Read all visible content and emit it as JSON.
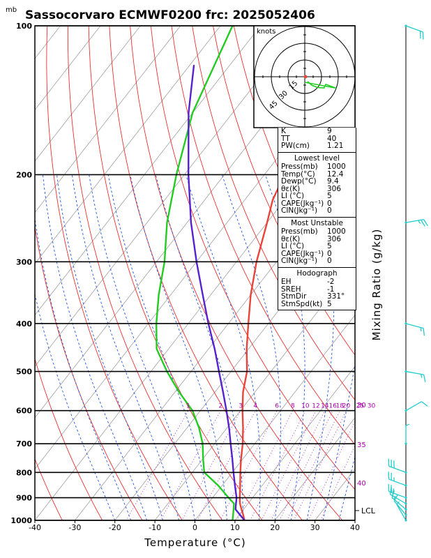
{
  "title": "Sassocorvaro ECMWF0200  frc: 2025052406",
  "pressure_unit": "mb",
  "xlabel": "Temperature (°C)",
  "ylabel": "Mixing Ratio (g/kg)",
  "lcl_label": "LCL",
  "hodograph": {
    "unit_label": "knots",
    "ring_labels": [
      "15",
      "30",
      "45"
    ]
  },
  "info": {
    "indices": [
      {
        "k": "K",
        "v": "9"
      },
      {
        "k": "TT",
        "v": "40"
      },
      {
        "k": "PW(cm)",
        "v": "1.21"
      }
    ],
    "lowest": {
      "header": "Lowest level",
      "rows": [
        {
          "k": "Press(mb)",
          "v": "1000"
        },
        {
          "k": "Temp(°C)",
          "v": "12.4"
        },
        {
          "k": "Dewp(°C)",
          "v": "9.4"
        },
        {
          "k": "θε(K)",
          "v": "306"
        },
        {
          "k": "LI (°C)",
          "v": "5"
        },
        {
          "k": "CAPE(Jkg⁻¹)",
          "v": "0"
        },
        {
          "k": "CIN(Jkg⁻¹)",
          "v": "0"
        }
      ]
    },
    "unstable": {
      "header": "Most Unstable",
      "rows": [
        {
          "k": "Press(mb)",
          "v": "1000"
        },
        {
          "k": "θε(K)",
          "v": "306"
        },
        {
          "k": "LI (°C)",
          "v": "5"
        },
        {
          "k": "CAPE(Jkg⁻¹)",
          "v": "0"
        },
        {
          "k": "CIN(Jkg⁻¹)",
          "v": "0"
        }
      ]
    },
    "hodo": {
      "header": "Hodograph",
      "rows": [
        {
          "k": "EH",
          "v": "-2"
        },
        {
          "k": "SREH",
          "v": "-1"
        },
        {
          "k": "StmDir",
          "v": "331°"
        },
        {
          "k": "StmSpd(kt)",
          "v": "5"
        }
      ]
    }
  },
  "chart_data": {
    "type": "line",
    "title": "Sassocorvaro ECMWF0200  frc: 2025052406",
    "xlabel": "Temperature (°C)",
    "ylabel": "Mixing Ratio (g/kg)",
    "xlim": [
      -40,
      40
    ],
    "ylim_pressure": [
      1000,
      100
    ],
    "x_ticks": [
      -40,
      -30,
      -20,
      -10,
      0,
      10,
      20,
      30,
      40
    ],
    "pressure_ticks": [
      1000,
      900,
      800,
      700,
      600,
      500,
      400,
      300,
      200,
      100
    ],
    "mixing_ratio_labels": [
      "1",
      "2",
      "3",
      "4",
      "6",
      "8",
      "10",
      "12",
      "14",
      "16",
      "18",
      "20",
      "25",
      "30"
    ],
    "theta_e_labels": [
      "30",
      "35",
      "40"
    ],
    "colors": {
      "temperature": "#e8443a",
      "dewpoint": "#22cc22",
      "parcel": "#5522cc",
      "dry_adiabat": "#e83030",
      "moist_adiabat": "#2255dd",
      "isotherm": "#aaaaaa",
      "mixing_ratio": "#aa22cc",
      "wind": "#22cccc",
      "label": "#aa00aa"
    },
    "series": [
      {
        "name": "Temperature",
        "points": [
          [
            1000,
            12.4
          ],
          [
            975,
            11
          ],
          [
            950,
            9.5
          ],
          [
            925,
            8
          ],
          [
            900,
            6.8
          ],
          [
            850,
            4.5
          ],
          [
            800,
            2
          ],
          [
            750,
            -0.5
          ],
          [
            700,
            -3
          ],
          [
            650,
            -6
          ],
          [
            600,
            -9.5
          ],
          [
            550,
            -13
          ],
          [
            500,
            -16
          ],
          [
            450,
            -20.5
          ],
          [
            400,
            -25
          ],
          [
            350,
            -30
          ],
          [
            300,
            -35
          ],
          [
            250,
            -40
          ],
          [
            225,
            -43
          ],
          [
            200,
            -45
          ],
          [
            150,
            -48
          ],
          [
            100,
            -52
          ]
        ]
      },
      {
        "name": "Dewpoint",
        "points": [
          [
            1000,
            9.4
          ],
          [
            975,
            8.5
          ],
          [
            950,
            7.5
          ],
          [
            925,
            6.5
          ],
          [
            900,
            4
          ],
          [
            850,
            -1
          ],
          [
            800,
            -7
          ],
          [
            750,
            -10
          ],
          [
            700,
            -13
          ],
          [
            650,
            -17
          ],
          [
            600,
            -22
          ],
          [
            550,
            -29
          ],
          [
            500,
            -36
          ],
          [
            450,
            -43
          ],
          [
            400,
            -48
          ],
          [
            350,
            -53
          ],
          [
            300,
            -58
          ],
          [
            250,
            -65
          ],
          [
            200,
            -72
          ],
          [
            150,
            -80
          ],
          [
            100,
            -87
          ]
        ]
      },
      {
        "name": "Parcel",
        "points": [
          [
            1000,
            12.4
          ],
          [
            950,
            8
          ],
          [
            925,
            7
          ],
          [
            900,
            6
          ],
          [
            850,
            3.2
          ],
          [
            800,
            0.3
          ],
          [
            750,
            -2.7
          ],
          [
            700,
            -6
          ],
          [
            650,
            -9.5
          ],
          [
            600,
            -13.5
          ],
          [
            550,
            -18
          ],
          [
            500,
            -23
          ],
          [
            450,
            -28.5
          ],
          [
            400,
            -35
          ],
          [
            350,
            -42
          ],
          [
            300,
            -50
          ],
          [
            250,
            -59
          ],
          [
            200,
            -69
          ],
          [
            150,
            -81
          ],
          [
            120,
            -89
          ]
        ]
      }
    ],
    "wind_barbs": [
      {
        "p": 1000,
        "speed_kt": 5,
        "dir": 330
      },
      {
        "p": 975,
        "speed_kt": 10,
        "dir": 320
      },
      {
        "p": 950,
        "speed_kt": 15,
        "dir": 310
      },
      {
        "p": 925,
        "speed_kt": 20,
        "dir": 300
      },
      {
        "p": 900,
        "speed_kt": 20,
        "dir": 290
      },
      {
        "p": 850,
        "speed_kt": 25,
        "dir": 290
      },
      {
        "p": 800,
        "speed_kt": 30,
        "dir": 290
      },
      {
        "p": 700,
        "speed_kt": 5,
        "dir": 0
      },
      {
        "p": 600,
        "speed_kt": 10,
        "dir": 60
      },
      {
        "p": 500,
        "speed_kt": 15,
        "dir": 100
      },
      {
        "p": 400,
        "speed_kt": 15,
        "dir": 105
      },
      {
        "p": 250,
        "speed_kt": 25,
        "dir": 80
      },
      {
        "p": 100,
        "speed_kt": 20,
        "dir": 110
      }
    ]
  }
}
